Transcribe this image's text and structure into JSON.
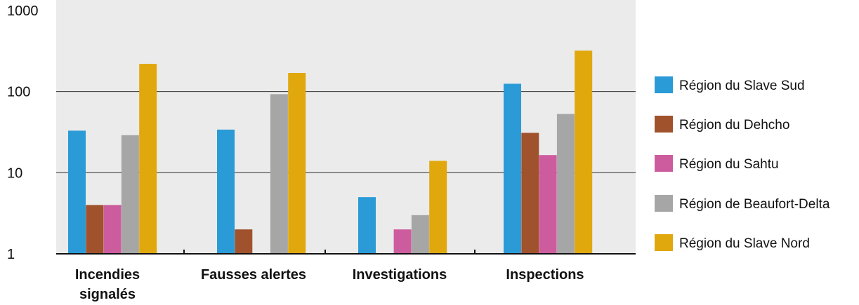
{
  "chart_data": {
    "type": "bar",
    "title": "",
    "xlabel": "",
    "ylabel": "",
    "y_scale": "log",
    "ylim": [
      1,
      1000
    ],
    "y_ticks": [
      1,
      10,
      100,
      1000
    ],
    "y_tick_labels": [
      "1",
      "10",
      "100",
      "1000"
    ],
    "grid": "horizontal",
    "legend_position": "right",
    "categories": [
      "Incendies signalés",
      "Fausses alertes",
      "Investigations",
      "Inspections"
    ],
    "category_display_lines": [
      [
        "Incendies",
        "signalés"
      ],
      [
        "Fausses alertes"
      ],
      [
        "Investigations"
      ],
      [
        "Inspections"
      ]
    ],
    "series": [
      {
        "name": "Région du Slave Sud",
        "color": "#2a9bd6",
        "values": [
          33,
          34,
          5,
          125
        ]
      },
      {
        "name": "Région du Dehcho",
        "color": "#a0522d",
        "values": [
          4,
          2,
          null,
          31
        ]
      },
      {
        "name": "Région du Sahtu",
        "color": "#cd5c9e",
        "values": [
          4,
          null,
          2,
          16.5
        ]
      },
      {
        "name": "Région de Beaufort-Delta",
        "color": "#a6a6a6",
        "values": [
          29,
          93,
          3,
          53
        ]
      },
      {
        "name": "Région du Slave Nord",
        "color": "#e0a80d",
        "values": [
          220,
          170,
          14,
          320
        ]
      }
    ],
    "colors": {
      "plot_background": "#ebebeb",
      "gridline": "#333333",
      "axis": "#111111"
    }
  }
}
